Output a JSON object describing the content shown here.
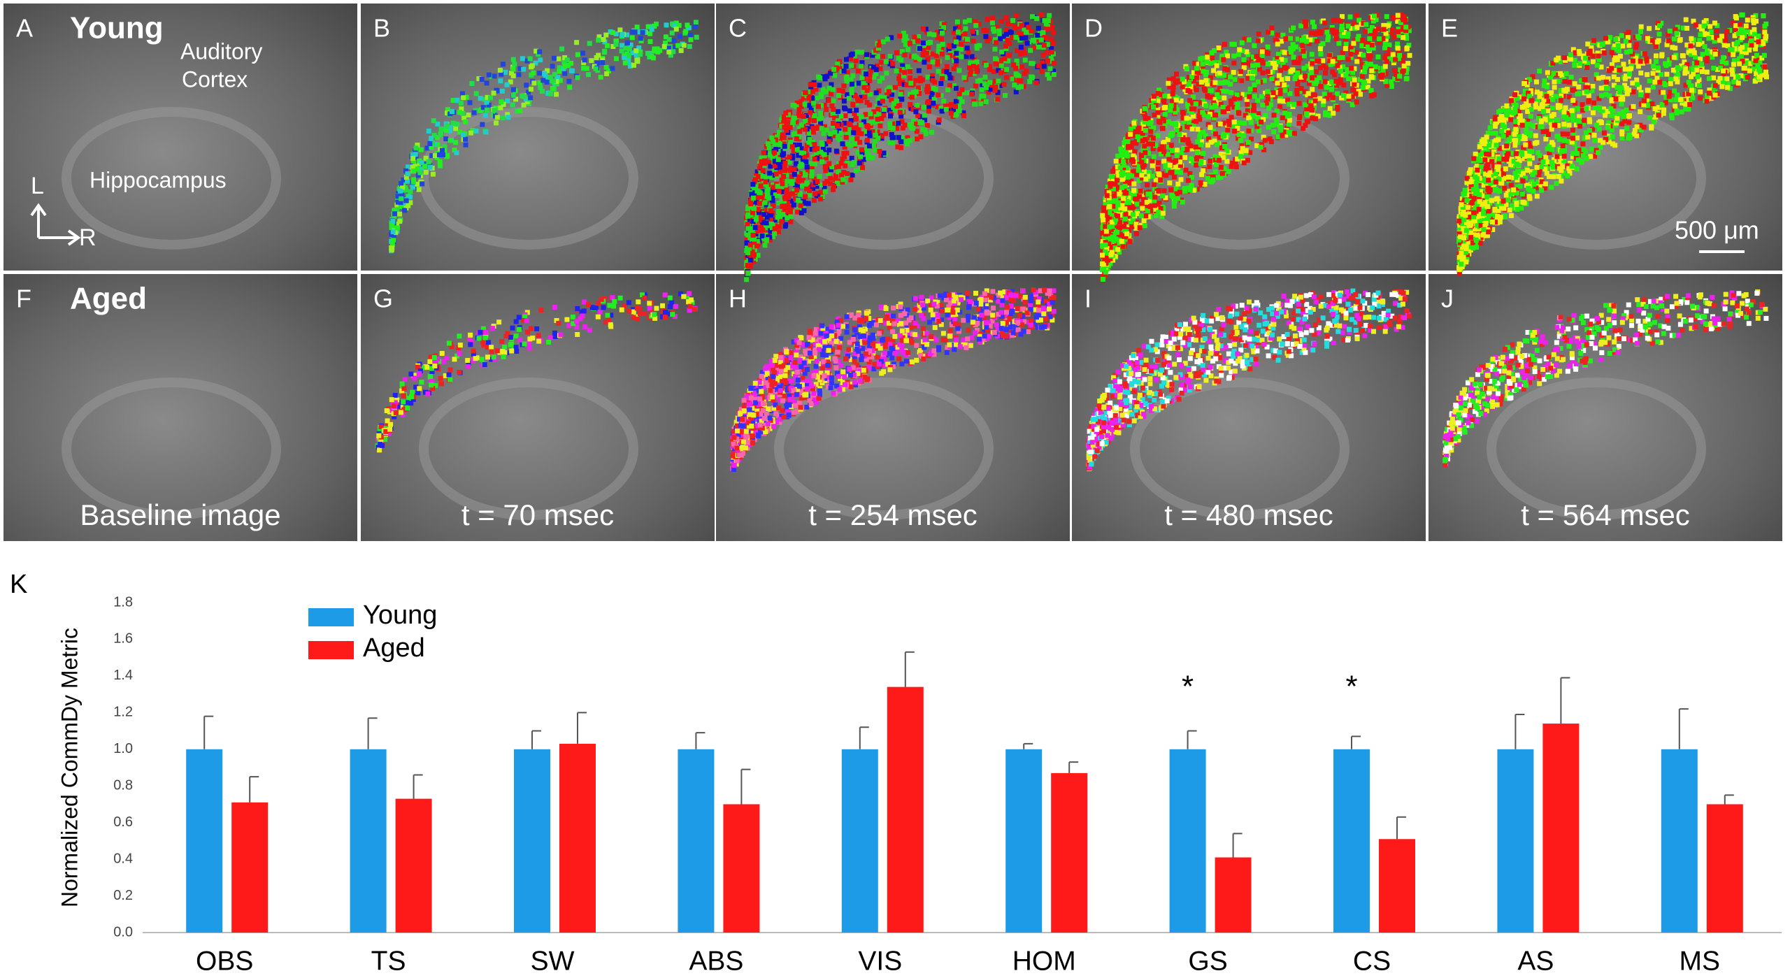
{
  "images": {
    "letters": [
      "A",
      "B",
      "C",
      "D",
      "E",
      "F",
      "G",
      "H",
      "I",
      "J"
    ],
    "row_labels": [
      "Young",
      "Aged"
    ],
    "region_labels": {
      "cortex": [
        "Auditory",
        "Cortex"
      ],
      "hippocampus": "Hippocampus"
    },
    "orientation": [
      "L",
      "R"
    ],
    "scale_bar": "500 μm",
    "captions": [
      "Baseline image",
      "t = 70 msec",
      "t = 254 msec",
      "t = 480 msec",
      "t = 564 msec"
    ]
  },
  "chart_data": {
    "type": "bar",
    "panel_label": "K",
    "ylabel": "Normalized CommDy Metric",
    "categories": [
      "OBS",
      "TS",
      "SW",
      "ABS",
      "VIS",
      "HOM",
      "GS",
      "CS",
      "AS",
      "MS"
    ],
    "series": [
      {
        "name": "Young",
        "color": "#1e9be6",
        "values": [
          1.0,
          1.0,
          1.0,
          1.0,
          1.0,
          1.0,
          1.0,
          1.0,
          1.0,
          1.0
        ],
        "errors": [
          0.18,
          0.17,
          0.1,
          0.09,
          0.12,
          0.03,
          0.1,
          0.07,
          0.19,
          0.22
        ]
      },
      {
        "name": "Aged",
        "color": "#ff1a1a",
        "values": [
          0.71,
          0.73,
          1.03,
          0.7,
          1.34,
          0.87,
          0.41,
          0.51,
          1.14,
          0.7
        ],
        "errors": [
          0.14,
          0.13,
          0.17,
          0.19,
          0.19,
          0.06,
          0.13,
          0.12,
          0.25,
          0.05
        ]
      }
    ],
    "annotations": [
      {
        "label": "*",
        "category": "GS"
      },
      {
        "label": "*",
        "category": "CS"
      }
    ],
    "ylim": [
      0,
      1.8
    ],
    "yticks": [
      {
        "value": 0,
        "label": "0.0"
      },
      0.2,
      0.4,
      0.6,
      0.8,
      {
        "value": 1,
        "label": "1.0"
      },
      1.2,
      1.4,
      1.6,
      1.8
    ],
    "grid": false,
    "legend": "upper-left"
  }
}
